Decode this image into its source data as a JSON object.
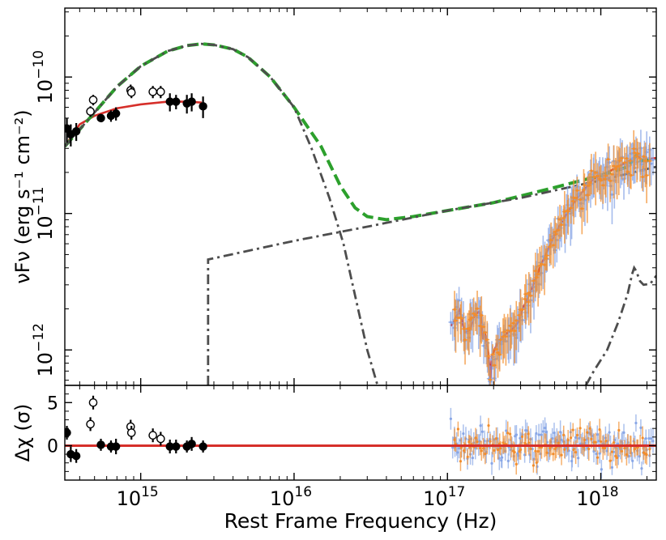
{
  "chart_data": {
    "type": "scatter",
    "title": "",
    "xlabel": "Rest Frame Frequency (Hz)",
    "ylabel_top": "νFν (erg s⁻¹ cm⁻²)",
    "ylabel_bottom": "Δχ (σ)",
    "x_scale": "log",
    "xlim": [
      320000000000000.0,
      2.3e+18
    ],
    "ylim_top": [
      5.5e-13,
      3.2e-10
    ],
    "ylim_bottom": [
      -4,
      7
    ],
    "x_ticks": [
      {
        "value": 1000000000000000.0,
        "base": "10",
        "exp": "15"
      },
      {
        "value": 1e+16,
        "base": "10",
        "exp": "16"
      },
      {
        "value": 1e+17,
        "base": "10",
        "exp": "17"
      },
      {
        "value": 1e+18,
        "base": "10",
        "exp": "18"
      }
    ],
    "y_ticks_top": [
      {
        "value": 1e-12,
        "base": "10",
        "exp": "−12"
      },
      {
        "value": 1e-11,
        "base": "10",
        "exp": "−11"
      },
      {
        "value": 1e-10,
        "base": "10",
        "exp": "−10"
      }
    ],
    "y_ticks_bottom": [
      {
        "value": 5,
        "label": "5"
      },
      {
        "value": 0,
        "label": "0"
      }
    ],
    "series": [
      {
        "name": "optical-uv-filled",
        "style": "filled-circle",
        "color": "#000000",
        "points": [
          [
            330000000000000.0,
            4.2e-11
          ],
          [
            350000000000000.0,
            3.8e-11
          ],
          [
            380000000000000.0,
            4e-11
          ],
          [
            550000000000000.0,
            5e-11
          ],
          [
            640000000000000.0,
            5.2e-11
          ],
          [
            690000000000000.0,
            5.4e-11
          ],
          [
            1550000000000000.0,
            6.6e-11
          ],
          [
            1700000000000000.0,
            6.6e-11
          ],
          [
            2000000000000000.0,
            6.4e-11
          ],
          [
            2150000000000000.0,
            6.6e-11
          ],
          [
            2550000000000000.0,
            6.1e-11
          ]
        ],
        "yerr": [
          [
            3.3e-11,
            5e-11
          ],
          [
            3.1e-11,
            4.5e-11
          ],
          [
            3.4e-11,
            4.6e-11
          ],
          [
            4.7e-11,
            5.3e-11
          ],
          [
            4.7e-11,
            5.7e-11
          ],
          [
            4.8e-11,
            6e-11
          ],
          [
            5.6e-11,
            7.6e-11
          ],
          [
            5.8e-11,
            7.4e-11
          ],
          [
            5.4e-11,
            7.4e-11
          ],
          [
            5.6e-11,
            7.6e-11
          ],
          [
            5e-11,
            7.2e-11
          ]
        ],
        "resid": [
          1.5,
          -1.0,
          -1.2,
          0.1,
          -0.1,
          -0.1,
          -0.1,
          -0.1,
          -0.1,
          0.2,
          -0.1
        ],
        "resid_err": [
          0.8,
          0.9,
          0.8,
          0.7,
          0.7,
          0.9,
          0.8,
          0.8,
          0.7,
          0.8,
          0.7
        ]
      },
      {
        "name": "optical-uv-open",
        "style": "open-circle",
        "color": "#000000",
        "points": [
          [
            470000000000000.0,
            5.6e-11
          ],
          [
            490000000000000.0,
            6.8e-11
          ],
          [
            860000000000000.0,
            8e-11
          ],
          [
            870000000000000.0,
            7.7e-11
          ],
          [
            1200000000000000.0,
            7.8e-11
          ],
          [
            1350000000000000.0,
            7.8e-11
          ]
        ],
        "yerr": [
          [
            5.1e-11,
            6.1e-11
          ],
          [
            6.2e-11,
            7.4e-11
          ],
          [
            7.2e-11,
            8.8e-11
          ],
          [
            7e-11,
            8.4e-11
          ],
          [
            7e-11,
            8.6e-11
          ],
          [
            7e-11,
            8.6e-11
          ]
        ],
        "resid": [
          2.5,
          5.0,
          2.2,
          1.5,
          1.2,
          0.8
        ],
        "resid_err": [
          0.8,
          0.8,
          0.8,
          0.8,
          0.8,
          0.8
        ]
      },
      {
        "name": "xray-blue",
        "style": "small-point",
        "color": "#88a6e6",
        "x_range": [
          1.05e+17,
          2.2e+18
        ],
        "n": 150,
        "scatter_frac": 0.22,
        "resid_sd": 1.1
      },
      {
        "name": "xray-orange",
        "style": "small-point",
        "color": "#f28d2c",
        "x_range": [
          1.1e+17,
          2.1e+18
        ],
        "n": 110,
        "scatter_frac": 0.2,
        "resid_sd": 1.0
      }
    ],
    "models": [
      {
        "name": "total-model",
        "style": "solid",
        "color": "#d62f2a",
        "segments": [
          [
            [
              320000000000000.0,
              3.1e-11
            ],
            [
              400000000000000.0,
              4.5e-11
            ],
            [
              500000000000000.0,
              5.2e-11
            ],
            [
              700000000000000.0,
              5.9e-11
            ],
            [
              1000000000000000.0,
              6.3e-11
            ],
            [
              1500000000000000.0,
              6.6e-11
            ],
            [
              2000000000000000.0,
              6.6e-11
            ],
            [
              2500000000000000.0,
              6.5e-11
            ]
          ],
          [
            [
              1.05e+17,
              1.5e-12
            ],
            [
              1.1e+17,
              1.6e-12
            ],
            [
              1.2e+17,
              1.95e-12
            ],
            [
              1.3e+17,
              1.35e-12
            ],
            [
              1.4e+17,
              1.4e-12
            ],
            [
              1.5e+17,
              1.8e-12
            ],
            [
              1.6e+17,
              1.9e-12
            ],
            [
              1.65e+17,
              1.8e-12
            ],
            [
              1.7e+17,
              1.2e-12
            ],
            [
              1.75e+17,
              1.35e-12
            ],
            [
              1.85e+17,
              9.5e-13
            ],
            [
              1.9e+17,
              6e-13
            ],
            [
              1.95e+17,
              9e-13
            ],
            [
              2.1e+17,
              1.1e-12
            ],
            [
              2.3e+17,
              1.25e-12
            ],
            [
              2.5e+17,
              1.35e-12
            ],
            [
              2.7e+17,
              1.45e-12
            ],
            [
              2.9e+17,
              1.6e-12
            ],
            [
              3.1e+17,
              2e-12
            ],
            [
              3.5e+17,
              2.7e-12
            ],
            [
              4e+17,
              4e-12
            ],
            [
              5e+17,
              7e-12
            ],
            [
              6e+17,
              1e-11
            ],
            [
              7e+17,
              1.3e-11
            ],
            [
              9e+17,
              1.8e-11
            ],
            [
              1.2e+18,
              2.1e-11
            ],
            [
              1.5e+18,
              2.4e-11
            ],
            [
              1.65e+18,
              2.55e-11
            ],
            [
              1.75e+18,
              2.7e-11
            ],
            [
              1.85e+18,
              2.4e-11
            ],
            [
              2e+18,
              2.5e-11
            ],
            [
              2.3e+18,
              2.55e-11
            ]
          ]
        ]
      },
      {
        "name": "disk-plus-powerlaw",
        "style": "dashed",
        "color": "#2ca02c",
        "segments": [
          [
            [
              320000000000000.0,
              3.1e-11
            ],
            [
              500000000000000.0,
              5.5e-11
            ],
            [
              700000000000000.0,
              8.5e-11
            ],
            [
              1000000000000000.0,
              1.2e-10
            ],
            [
              1500000000000000.0,
              1.55e-10
            ],
            [
              2000000000000000.0,
              1.7e-10
            ],
            [
              2500000000000000.0,
              1.75e-10
            ],
            [
              3000000000000000.0,
              1.72e-10
            ],
            [
              4000000000000000.0,
              1.6e-10
            ],
            [
              5000000000000000.0,
              1.4e-10
            ],
            [
              7000000000000000.0,
              1e-10
            ],
            [
              1e+16,
              6e-11
            ],
            [
              1.5e+16,
              3.1e-11
            ],
            [
              2e+16,
              1.6e-11
            ],
            [
              2.5e+16,
              1.1e-11
            ],
            [
              3e+16,
              9.5e-12
            ],
            [
              4e+16,
              9e-12
            ],
            [
              6e+16,
              9.5e-12
            ],
            [
              1e+17,
              1.05e-11
            ],
            [
              2e+17,
              1.2e-11
            ],
            [
              5e+17,
              1.55e-11
            ],
            [
              1e+18,
              1.9e-11
            ],
            [
              1.5e+18,
              2.2e-11
            ],
            [
              1.7e+18,
              2.65e-11
            ],
            [
              1.8e+18,
              2.45e-11
            ],
            [
              2e+18,
              2.45e-11
            ],
            [
              2.3e+18,
              2.5e-11
            ]
          ]
        ]
      },
      {
        "name": "disk-component",
        "style": "dashdot",
        "color": "#4d4d4d",
        "segments": [
          [
            [
              320000000000000.0,
              3.1e-11
            ],
            [
              500000000000000.0,
              5.5e-11
            ],
            [
              700000000000000.0,
              8.5e-11
            ],
            [
              1000000000000000.0,
              1.2e-10
            ],
            [
              1500000000000000.0,
              1.55e-10
            ],
            [
              2000000000000000.0,
              1.7e-10
            ],
            [
              2500000000000000.0,
              1.75e-10
            ],
            [
              3000000000000000.0,
              1.72e-10
            ],
            [
              4000000000000000.0,
              1.6e-10
            ],
            [
              5000000000000000.0,
              1.4e-10
            ],
            [
              7000000000000000.0,
              1e-10
            ],
            [
              1e+16,
              6e-11
            ],
            [
              1.3e+16,
              3e-11
            ],
            [
              1.7e+16,
              1.3e-11
            ],
            [
              2.1e+16,
              6e-12
            ],
            [
              2.5e+16,
              2.5e-12
            ],
            [
              3e+16,
              1e-12
            ],
            [
              3.5e+16,
              5.5e-13
            ]
          ]
        ]
      },
      {
        "name": "powerlaw-component",
        "style": "dashdot",
        "color": "#4d4d4d",
        "segments": [
          [
            [
              2750000000000000.0,
              5.5e-13
            ],
            [
              2750000000000000.0,
              4.6e-12
            ],
            [
              1e+16,
              6.3e-12
            ],
            [
              3e+16,
              8e-12
            ],
            [
              1e+17,
              1.05e-11
            ],
            [
              3e+17,
              1.3e-11
            ],
            [
              1e+18,
              1.75e-11
            ],
            [
              2.3e+18,
              2.2e-11
            ]
          ]
        ]
      },
      {
        "name": "xray-line-component",
        "style": "dashdot",
        "color": "#4d4d4d",
        "segments": [
          [
            [
              8e+17,
              5.5e-13
            ],
            [
              9e+17,
              7e-13
            ],
            [
              1.1e+18,
              1e-12
            ],
            [
              1.3e+18,
              1.6e-12
            ],
            [
              1.5e+18,
              2.6e-12
            ],
            [
              1.6e+18,
              3.6e-12
            ],
            [
              1.65e+18,
              4e-12
            ],
            [
              1.7e+18,
              3.8e-12
            ],
            [
              1.8e+18,
              3.2e-12
            ],
            [
              1.9e+18,
              3e-12
            ],
            [
              2.1e+18,
              3.05e-12
            ],
            [
              2.3e+18,
              3.5e-12
            ]
          ]
        ]
      },
      {
        "name": "zero-line",
        "style": "solid-resid",
        "color": "#d62f2a",
        "segments": [
          [
            [
              320000000000000.0,
              0
            ],
            [
              2.3e+18,
              0
            ]
          ]
        ]
      }
    ]
  }
}
